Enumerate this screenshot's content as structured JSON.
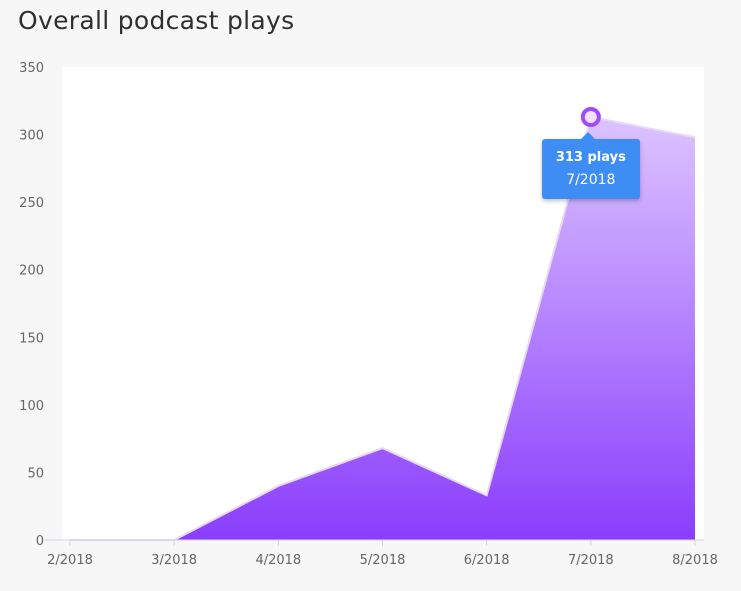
{
  "chart_data": {
    "type": "area",
    "title": "Overall podcast plays",
    "x": [
      "2/2018",
      "3/2018",
      "4/2018",
      "5/2018",
      "6/2018",
      "7/2018",
      "8/2018"
    ],
    "series": [
      {
        "values": [
          0,
          0,
          40,
          68,
          33,
          313,
          298
        ]
      }
    ],
    "ylim": [
      0,
      350
    ],
    "yticks": [
      0,
      50,
      100,
      150,
      200,
      250,
      300,
      350
    ],
    "colors": {
      "fill_top": "#dcc4ff",
      "fill_bottom": "#8a3dfc",
      "line": "#e6d9f7",
      "marker": "#9b4dff"
    }
  },
  "tooltip": {
    "value_text": "313 plays",
    "date_text": "7/2018",
    "point_index": 5
  }
}
